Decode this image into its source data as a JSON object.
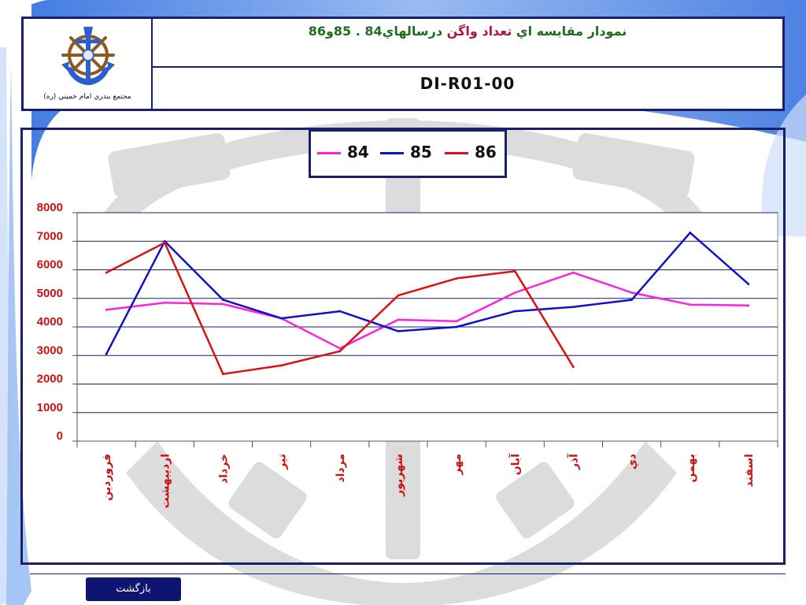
{
  "header": {
    "logo_caption": "مجتمع بندري امام خميني (ره)",
    "title_part1": "نمودار مقايسه اي ",
    "title_part2": "تعداد واگن",
    "title_part3": " درسالهاي84 . 85و86",
    "document_code": "DI-R01-00"
  },
  "footer": {
    "back_label": "بازگشت"
  },
  "colors": {
    "frame": "#1a1f6b",
    "series_84": "#ff22dd",
    "series_85": "#1010cc",
    "series_86": "#dd1111"
  },
  "chart_data": {
    "type": "line",
    "categories": [
      "فروردين",
      "ارديبهشت",
      "خرداد",
      "تير",
      "مرداد",
      "شهريور",
      "مهر",
      "آبان",
      "آذر",
      "دي",
      "بهمن",
      "اسفند"
    ],
    "series": [
      {
        "name": "84",
        "values": [
          4600,
          4850,
          4800,
          4300,
          3250,
          4250,
          4200,
          5200,
          5900,
          5200,
          4780,
          4750
        ]
      },
      {
        "name": "85",
        "values": [
          3050,
          7000,
          4950,
          4300,
          4550,
          3850,
          4000,
          4550,
          4700,
          4950,
          7300,
          5500
        ]
      },
      {
        "name": "86",
        "values": [
          5900,
          6950,
          2350,
          2650,
          3150,
          5100,
          5700,
          5950,
          2600,
          null,
          null,
          null
        ]
      }
    ],
    "y_ticks": [
      "8000",
      "7000",
      "6000",
      "5000",
      "4000",
      "3000",
      "2000",
      "1000",
      "0"
    ],
    "ylim": [
      0,
      8000
    ],
    "grid": true,
    "legend_position": "top-center"
  }
}
